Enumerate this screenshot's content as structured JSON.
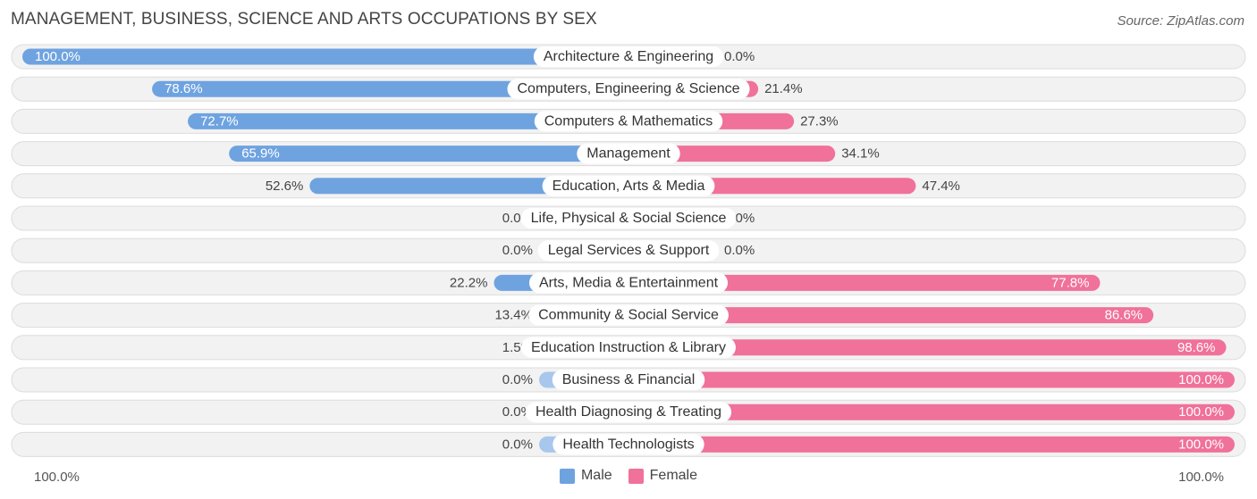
{
  "title": "MANAGEMENT, BUSINESS, SCIENCE AND ARTS OCCUPATIONS BY SEX",
  "source": "Source: ZipAtlas.com",
  "axis": {
    "left_label": "100.0%",
    "right_label": "100.0%"
  },
  "legend": {
    "male": "Male",
    "female": "Female"
  },
  "colors": {
    "male_strong": "#6ea3e0",
    "male_light": "#a9c7ec",
    "female_strong": "#f07199",
    "female_light": "#f7a6c0",
    "row_bg": "#f2f2f2",
    "row_border": "#dcdcdc"
  },
  "chart_data": {
    "type": "bar",
    "orientation": "horizontal-diverging",
    "title": "MANAGEMENT, BUSINESS, SCIENCE AND ARTS OCCUPATIONS BY SEX",
    "xlim": [
      -100,
      100
    ],
    "series": [
      {
        "name": "Male",
        "values": [
          100.0,
          78.6,
          72.7,
          65.9,
          52.6,
          0.0,
          0.0,
          22.2,
          13.4,
          1.5,
          0.0,
          0.0,
          0.0
        ]
      },
      {
        "name": "Female",
        "values": [
          0.0,
          21.4,
          27.3,
          34.1,
          47.4,
          0.0,
          0.0,
          77.8,
          86.6,
          98.6,
          100.0,
          100.0,
          100.0
        ]
      }
    ],
    "categories": [
      "Architecture & Engineering",
      "Computers, Engineering & Science",
      "Computers & Mathematics",
      "Management",
      "Education, Arts & Media",
      "Life, Physical & Social Science",
      "Legal Services & Support",
      "Arts, Media & Entertainment",
      "Community & Social Service",
      "Education Instruction & Library",
      "Business & Financial",
      "Health Diagnosing & Treating",
      "Health Technologists"
    ],
    "male_labels": [
      "100.0%",
      "78.6%",
      "72.7%",
      "65.9%",
      "52.6%",
      "0.0%",
      "0.0%",
      "22.2%",
      "13.4%",
      "1.5%",
      "0.0%",
      "0.0%",
      "0.0%"
    ],
    "female_labels": [
      "0.0%",
      "21.4%",
      "27.3%",
      "34.1%",
      "47.4%",
      "0.0%",
      "0.0%",
      "77.8%",
      "86.6%",
      "98.6%",
      "100.0%",
      "100.0%",
      "100.0%"
    ],
    "legend_position": "bottom-center"
  }
}
